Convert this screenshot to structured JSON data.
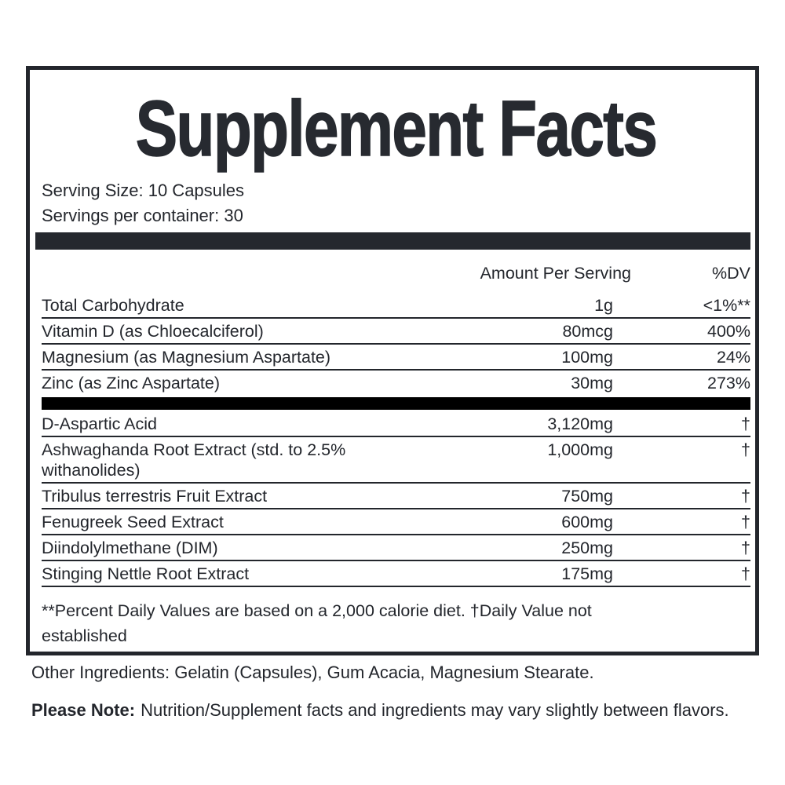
{
  "label": {
    "title": "Supplement Facts",
    "serving_size": "Serving Size: 10 Capsules",
    "servings_per_container": "Servings per container: 30",
    "columns": {
      "amount": "Amount Per Serving",
      "dv": "%DV"
    },
    "section1": [
      {
        "name": "Total Carbohydrate",
        "amount": "1g",
        "dv": "<1%**"
      },
      {
        "name": "Vitamin D (as Chloecalciferol)",
        "amount": "80mcg",
        "dv": "400%"
      },
      {
        "name": "Magnesium (as Magnesium Aspartate)",
        "amount": "100mg",
        "dv": "24%"
      },
      {
        "name": "Zinc (as Zinc Aspartate)",
        "amount": "30mg",
        "dv": "273%"
      }
    ],
    "section2": [
      {
        "name": "D-Aspartic Acid",
        "amount": "3,120mg",
        "dv": "†"
      },
      {
        "name": "Ashwaghanda Root Extract (std. to 2.5% withanolides)",
        "amount": "1,000mg",
        "dv": "†"
      },
      {
        "name": "Tribulus terrestris Fruit Extract",
        "amount": "750mg",
        "dv": "†"
      },
      {
        "name": "Fenugreek Seed Extract",
        "amount": "600mg",
        "dv": "†"
      },
      {
        "name": "Diindolylmethane (DIM)",
        "amount": "250mg",
        "dv": "†"
      },
      {
        "name": "Stinging Nettle Root Extract",
        "amount": "175mg",
        "dv": "†"
      }
    ],
    "footnote": "**Percent Daily Values are based on a 2,000 calorie diet. †Daily Value not established",
    "other_ingredients": "Other Ingredients: Gelatin (Capsules), Gum Acacia, Magnesium Stearate.",
    "note_label": "Please Note:",
    "note_text": "Nutrition/Supplement facts and ingredients may vary slightly between flavors.",
    "colors": {
      "ink": "#23262c",
      "divider_bar_top": "#25282e",
      "divider_bar_middle": "#000000",
      "background": "#ffffff"
    }
  }
}
